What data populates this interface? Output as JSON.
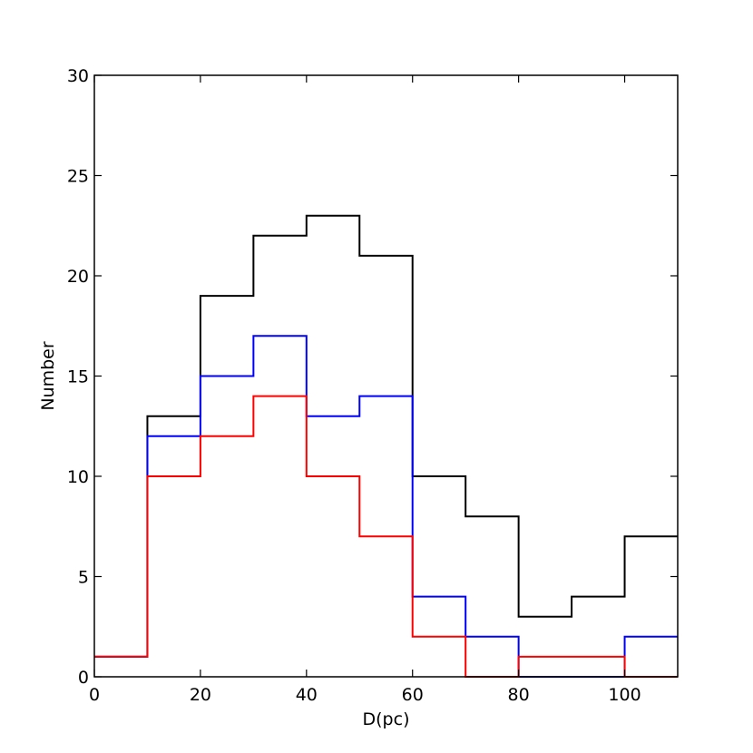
{
  "chart_data": {
    "type": "line",
    "chart_style": "step histogram",
    "title": "",
    "xlabel": "D(pc)",
    "ylabel": "Number",
    "xlim": [
      0,
      110
    ],
    "ylim": [
      0,
      30
    ],
    "xticks": [
      0,
      20,
      40,
      60,
      80,
      100
    ],
    "yticks": [
      0,
      5,
      10,
      15,
      20,
      25,
      30
    ],
    "grid": false,
    "legend": "none",
    "bin_edges": [
      0,
      10,
      20,
      30,
      40,
      50,
      60,
      70,
      80,
      90,
      100,
      110
    ],
    "series": [
      {
        "color": "#000000",
        "values": [
          1,
          13,
          19,
          22,
          23,
          21,
          10,
          8,
          3,
          4,
          7
        ]
      },
      {
        "color": "#0000ff",
        "values": [
          1,
          12,
          15,
          17,
          13,
          14,
          4,
          2,
          0,
          0,
          2
        ]
      },
      {
        "color": "#ff0000",
        "values": [
          1,
          10,
          12,
          14,
          10,
          7,
          2,
          0,
          1,
          1,
          0
        ]
      }
    ]
  }
}
